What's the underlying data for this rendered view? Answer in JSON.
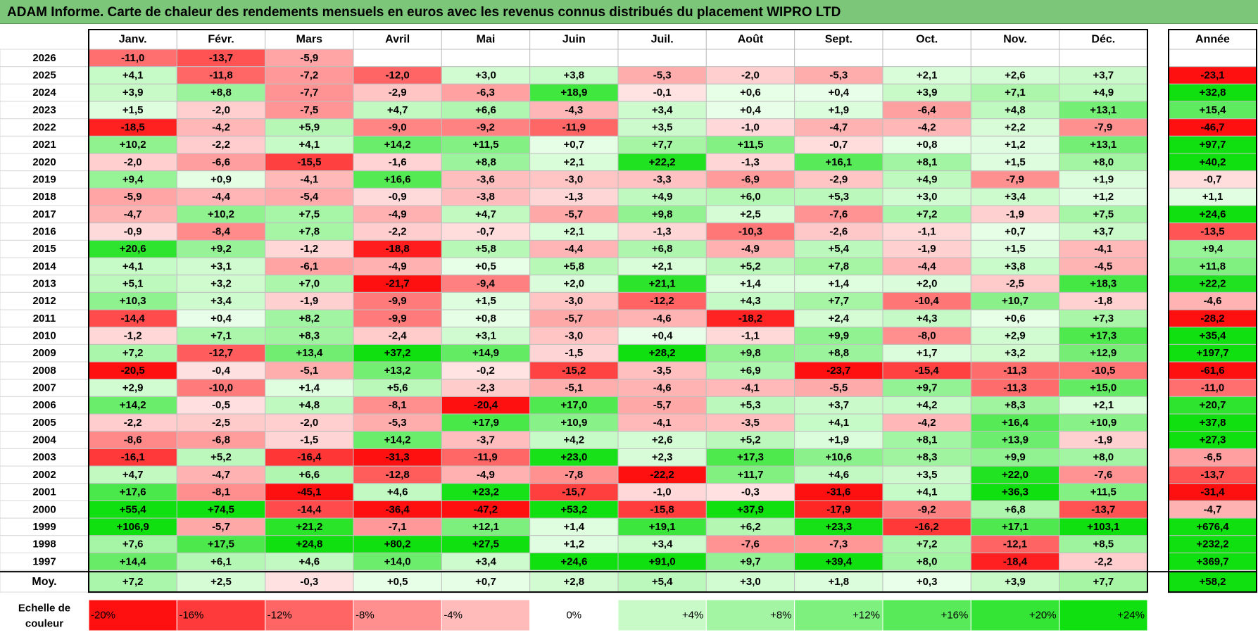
{
  "title": "ADAM Informe. Carte de chaleur des rendements mensuels en euros avec les revenus connus distribués du placement WIPRO LTD",
  "chart_data": {
    "type": "heatmap",
    "title": "ADAM Informe. Carte de chaleur des rendements mensuels en euros avec les revenus connus distribués du placement WIPRO LTD",
    "months": [
      "Janv.",
      "Févr.",
      "Mars",
      "Avril",
      "Mai",
      "Juin",
      "Juil.",
      "Août",
      "Sept.",
      "Oct.",
      "Nov.",
      "Déc."
    ],
    "year_header": "Année",
    "rows": [
      {
        "year": "2026",
        "values": [
          "-11,0",
          "-13,7",
          "-5,9",
          "",
          "",
          "",
          "",
          "",
          "",
          "",
          "",
          ""
        ],
        "annual": ""
      },
      {
        "year": "2025",
        "values": [
          "+4,1",
          "-11,8",
          "-7,2",
          "-12,0",
          "+3,0",
          "+3,8",
          "-5,3",
          "-2,0",
          "-5,3",
          "+2,1",
          "+2,6",
          "+3,7"
        ],
        "annual": "-23,1"
      },
      {
        "year": "2024",
        "values": [
          "+3,9",
          "+8,8",
          "-7,7",
          "-2,9",
          "-6,3",
          "+18,9",
          "-0,1",
          "+0,6",
          "+0,4",
          "+3,9",
          "+7,1",
          "+4,9"
        ],
        "annual": "+32,8"
      },
      {
        "year": "2023",
        "values": [
          "+1,5",
          "-2,0",
          "-7,5",
          "+4,7",
          "+6,6",
          "-4,3",
          "+3,4",
          "+0,4",
          "+1,9",
          "-6,4",
          "+4,8",
          "+13,1"
        ],
        "annual": "+15,4"
      },
      {
        "year": "2022",
        "values": [
          "-18,5",
          "-4,2",
          "+5,9",
          "-9,0",
          "-9,2",
          "-11,9",
          "+3,5",
          "-1,0",
          "-4,7",
          "-4,2",
          "+2,2",
          "-7,9"
        ],
        "annual": "-46,7"
      },
      {
        "year": "2021",
        "values": [
          "+10,2",
          "-2,2",
          "+4,1",
          "+14,2",
          "+11,5",
          "+0,7",
          "+7,7",
          "+11,5",
          "-0,7",
          "+0,8",
          "+1,2",
          "+13,1"
        ],
        "annual": "+97,7"
      },
      {
        "year": "2020",
        "values": [
          "-2,0",
          "-6,6",
          "-15,5",
          "-1,6",
          "+8,8",
          "+2,1",
          "+22,2",
          "-1,3",
          "+16,1",
          "+8,1",
          "+1,5",
          "+8,0"
        ],
        "annual": "+40,2"
      },
      {
        "year": "2019",
        "values": [
          "+9,4",
          "+0,9",
          "-4,1",
          "+16,6",
          "-3,6",
          "-3,0",
          "-3,3",
          "-6,9",
          "-2,9",
          "+4,9",
          "-7,9",
          "+1,9"
        ],
        "annual": "-0,7"
      },
      {
        "year": "2018",
        "values": [
          "-5,9",
          "-4,4",
          "-5,4",
          "-0,9",
          "-3,8",
          "-1,3",
          "+4,9",
          "+6,0",
          "+5,3",
          "+3,0",
          "+3,4",
          "+1,2"
        ],
        "annual": "+1,1"
      },
      {
        "year": "2017",
        "values": [
          "-4,7",
          "+10,2",
          "+7,5",
          "-4,9",
          "+4,7",
          "-5,7",
          "+9,8",
          "+2,5",
          "-7,6",
          "+7,2",
          "-1,9",
          "+7,5"
        ],
        "annual": "+24,6"
      },
      {
        "year": "2016",
        "values": [
          "-0,9",
          "-8,4",
          "+7,8",
          "-2,2",
          "-0,7",
          "+2,1",
          "-1,3",
          "-10,3",
          "-2,6",
          "-1,1",
          "+0,7",
          "+3,7"
        ],
        "annual": "-13,5"
      },
      {
        "year": "2015",
        "values": [
          "+20,6",
          "+9,2",
          "-1,2",
          "-18,8",
          "+5,8",
          "-4,4",
          "+6,8",
          "-4,9",
          "+5,4",
          "-1,9",
          "+1,5",
          "-4,1"
        ],
        "annual": "+9,4"
      },
      {
        "year": "2014",
        "values": [
          "+4,1",
          "+3,1",
          "-6,1",
          "-4,9",
          "+0,5",
          "+5,8",
          "+2,1",
          "+5,2",
          "+7,8",
          "-4,4",
          "+3,8",
          "-4,5"
        ],
        "annual": "+11,8"
      },
      {
        "year": "2013",
        "values": [
          "+5,1",
          "+3,2",
          "+7,0",
          "-21,7",
          "-9,4",
          "+2,0",
          "+21,1",
          "+1,4",
          "+1,4",
          "+2,0",
          "-2,5",
          "+18,3"
        ],
        "annual": "+22,2"
      },
      {
        "year": "2012",
        "values": [
          "+10,3",
          "+3,4",
          "-1,9",
          "-9,9",
          "+1,5",
          "-3,0",
          "-12,2",
          "+4,3",
          "+7,7",
          "-10,4",
          "+10,7",
          "-1,8"
        ],
        "annual": "-4,6"
      },
      {
        "year": "2011",
        "values": [
          "-14,4",
          "+0,4",
          "+8,2",
          "-9,9",
          "+0,8",
          "-5,7",
          "-4,6",
          "-18,2",
          "+2,4",
          "+4,3",
          "+0,6",
          "+7,3"
        ],
        "annual": "-28,2"
      },
      {
        "year": "2010",
        "values": [
          "-1,2",
          "+7,1",
          "+8,3",
          "-2,4",
          "+3,1",
          "-3,0",
          "+0,4",
          "-1,1",
          "+9,9",
          "-8,0",
          "+2,9",
          "+17,3"
        ],
        "annual": "+35,4"
      },
      {
        "year": "2009",
        "values": [
          "+7,2",
          "-12,7",
          "+13,4",
          "+37,2",
          "+14,9",
          "-1,5",
          "+28,2",
          "+9,8",
          "+8,8",
          "+1,7",
          "+3,2",
          "+12,9"
        ],
        "annual": "+197,7"
      },
      {
        "year": "2008",
        "values": [
          "-20,5",
          "-0,4",
          "-5,1",
          "+13,2",
          "-0,2",
          "-15,2",
          "-3,5",
          "+6,9",
          "-23,7",
          "-15,4",
          "-11,3",
          "-10,5"
        ],
        "annual": "-61,6"
      },
      {
        "year": "2007",
        "values": [
          "+2,9",
          "-10,0",
          "+1,4",
          "+5,6",
          "-2,3",
          "-5,1",
          "-4,6",
          "-4,1",
          "-5,5",
          "+9,7",
          "-11,3",
          "+15,0"
        ],
        "annual": "-11,0"
      },
      {
        "year": "2006",
        "values": [
          "+14,2",
          "-0,5",
          "+4,8",
          "-8,1",
          "-20,4",
          "+17,0",
          "-5,7",
          "+5,3",
          "+3,7",
          "+4,2",
          "+8,3",
          "+2,1"
        ],
        "annual": "+20,7"
      },
      {
        "year": "2005",
        "values": [
          "-2,2",
          "-2,5",
          "-2,0",
          "-5,3",
          "+17,9",
          "+10,9",
          "-4,1",
          "-3,5",
          "+4,1",
          "-4,2",
          "+16,4",
          "+10,9"
        ],
        "annual": "+37,8"
      },
      {
        "year": "2004",
        "values": [
          "-8,6",
          "-6,8",
          "-1,5",
          "+14,2",
          "-3,7",
          "+4,2",
          "+2,6",
          "+5,2",
          "+1,9",
          "+8,1",
          "+13,9",
          "-1,9"
        ],
        "annual": "+27,3"
      },
      {
        "year": "2003",
        "values": [
          "-16,1",
          "+5,2",
          "-16,4",
          "-31,3",
          "-11,9",
          "+23,0",
          "+2,3",
          "+17,3",
          "+10,6",
          "+8,3",
          "+9,9",
          "+8,0"
        ],
        "annual": "-6,5"
      },
      {
        "year": "2002",
        "values": [
          "+4,7",
          "-4,7",
          "+6,6",
          "-12,8",
          "-4,9",
          "-7,8",
          "-22,2",
          "+11,7",
          "+4,6",
          "+3,5",
          "+22,0",
          "-7,6"
        ],
        "annual": "-13,7"
      },
      {
        "year": "2001",
        "values": [
          "+17,6",
          "-8,1",
          "-45,1",
          "+4,6",
          "+23,2",
          "-15,7",
          "-1,0",
          "-0,3",
          "-31,6",
          "+4,1",
          "+36,3",
          "+11,5"
        ],
        "annual": "-31,4"
      },
      {
        "year": "2000",
        "values": [
          "+55,4",
          "+74,5",
          "-14,4",
          "-36,4",
          "-47,2",
          "+53,2",
          "-15,8",
          "+37,9",
          "-17,9",
          "-9,2",
          "+6,8",
          "-13,7"
        ],
        "annual": "-4,7"
      },
      {
        "year": "1999",
        "values": [
          "+106,9",
          "-5,7",
          "+21,2",
          "-7,1",
          "+12,1",
          "+1,4",
          "+19,1",
          "+6,2",
          "+23,3",
          "-16,2",
          "+17,1",
          "+103,1"
        ],
        "annual": "+676,4"
      },
      {
        "year": "1998",
        "values": [
          "+7,6",
          "+17,5",
          "+24,8",
          "+80,2",
          "+27,5",
          "+1,2",
          "+3,4",
          "-7,6",
          "-7,3",
          "+7,2",
          "-12,1",
          "+8,5"
        ],
        "annual": "+232,2"
      },
      {
        "year": "1997",
        "values": [
          "+14,4",
          "+6,1",
          "+4,6",
          "+14,0",
          "+3,4",
          "+24,6",
          "+91,0",
          "+9,7",
          "+39,4",
          "+8,0",
          "-18,4",
          "-2,2"
        ],
        "annual": "+369,7"
      }
    ],
    "average": {
      "label": "Moy.",
      "values": [
        "+7,2",
        "+2,5",
        "-0,3",
        "+0,5",
        "+0,7",
        "+2,8",
        "+5,4",
        "+3,0",
        "+1,8",
        "+0,3",
        "+3,9",
        "+7,7"
      ],
      "annual": "+58,2"
    },
    "legend": {
      "label_line1": "Echelle de",
      "label_line2": "couleur",
      "stops": [
        "-20%",
        "-16%",
        "-12%",
        "-8%",
        "-4%",
        "0%",
        "+4%",
        "+8%",
        "+12%",
        "+16%",
        "+20%",
        "+24%"
      ],
      "stop_values": [
        -20,
        -16,
        -12,
        -8,
        -4,
        0,
        4,
        8,
        12,
        16,
        20,
        24
      ]
    },
    "colors": {
      "neg_max": "#ff1010",
      "neg_min": "#ffe4e4",
      "pos_min": "#ecffec",
      "pos_max": "#10e010",
      "title_bg": "#7cc67a"
    }
  }
}
